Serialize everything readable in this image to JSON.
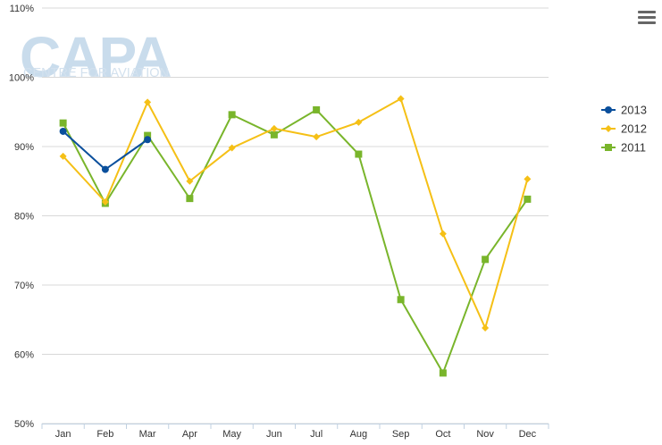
{
  "watermark": {
    "brand": "CAPA",
    "tagline": "CENTRE FOR AVIATION"
  },
  "menu": {
    "icon": "hamburger-menu-icon"
  },
  "chart_data": {
    "type": "line",
    "title": "",
    "xlabel": "",
    "ylabel": "",
    "categories": [
      "Jan",
      "Feb",
      "Mar",
      "Apr",
      "May",
      "Jun",
      "Jul",
      "Aug",
      "Sep",
      "Oct",
      "Nov",
      "Dec"
    ],
    "ylim": [
      50,
      110
    ],
    "yticks": [
      50,
      60,
      70,
      80,
      90,
      100,
      110
    ],
    "ytick_labels": [
      "50%",
      "60%",
      "70%",
      "80%",
      "90%",
      "100%",
      "110%"
    ],
    "grid": "horizontal",
    "legend_position": "right",
    "series": [
      {
        "name": "2013",
        "color": "#0a4f9c",
        "marker": "circle",
        "values": [
          92.2,
          86.7,
          91.0,
          null,
          null,
          null,
          null,
          null,
          null,
          null,
          null,
          null
        ]
      },
      {
        "name": "2012",
        "color": "#f5c016",
        "marker": "diamond",
        "values": [
          88.6,
          82.0,
          96.4,
          85.0,
          89.8,
          92.6,
          91.4,
          93.5,
          96.9,
          77.4,
          63.8,
          85.3
        ]
      },
      {
        "name": "2011",
        "color": "#79b52b",
        "marker": "square",
        "values": [
          93.4,
          81.8,
          91.6,
          82.5,
          94.6,
          91.7,
          95.3,
          88.9,
          67.9,
          57.3,
          73.7,
          82.4
        ]
      }
    ]
  }
}
